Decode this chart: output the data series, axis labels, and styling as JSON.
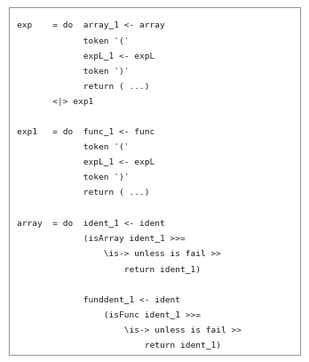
{
  "background_color": "#ffffff",
  "border_color": "#999999",
  "text_color": "#222222",
  "font_family": "monospace",
  "font_size": 6.8,
  "lines": [
    "exp    = do  array_1 <- array",
    "             token '('",
    "             expL_1 <- expL",
    "             token ')'",
    "             return ( ...)",
    "       <|> exp1",
    "",
    "exp1   = do  func_1 <- func",
    "             token '('",
    "             expL_1 <- expL",
    "             token ')'",
    "             return ( ...)",
    "",
    "array  = do  ident_1 <- ident",
    "             (isArray ident_1 >>=",
    "                 \\is-> unless is fail >>",
    "                     return ident_1)",
    "",
    "             funddent_1 <- ident",
    "                 (isFunc ident_1 >>=",
    "                     \\is-> unless is fail >>",
    "                         return ident_1)"
  ],
  "figwidth": 3.48,
  "figheight": 4.07,
  "dpi": 100
}
